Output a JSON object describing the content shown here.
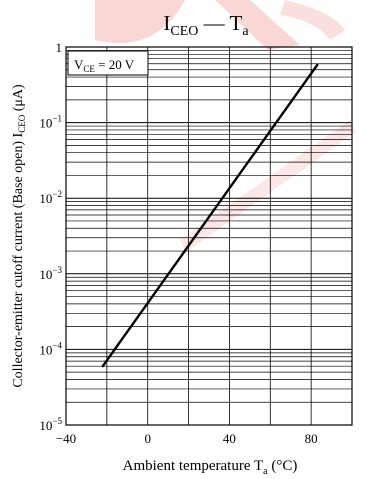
{
  "chart_data": {
    "type": "line",
    "title": "I CEO — T a",
    "title_parts": {
      "main": "I",
      "main_sub": "CEO",
      "sep": " — ",
      "var": "T",
      "var_sub": "a"
    },
    "xlabel_parts": {
      "text": "Ambient temperature ",
      "var": "T",
      "sub": "a",
      "unit": " (°C)"
    },
    "ylabel_parts": {
      "text": "Collector-emitter cutoff current (Base open) ",
      "var": "I",
      "sub": "CEO",
      "unit": " (μA)"
    },
    "annotation_parts": {
      "pre": "V",
      "sub": "CE",
      "post": " = 20 V"
    },
    "x_scale": "linear",
    "y_scale": "log",
    "xlim": [
      -40,
      100
    ],
    "ylim": [
      1e-05,
      1
    ],
    "x_ticks": [
      -40,
      0,
      40,
      80
    ],
    "x_tick_labels": [
      "−40",
      "0",
      "40",
      "80"
    ],
    "y_ticks": [
      1e-05,
      0.0001,
      0.001,
      0.01,
      0.1,
      1
    ],
    "y_tick_labels": [
      {
        "base": "10",
        "exp": "−5"
      },
      {
        "base": "10",
        "exp": "−4"
      },
      {
        "base": "10",
        "exp": "−3"
      },
      {
        "base": "10",
        "exp": "−2"
      },
      {
        "base": "10",
        "exp": "−1"
      },
      {
        "base": "1",
        "exp": ""
      }
    ],
    "grid": true,
    "x_grid_step": 20,
    "series": [
      {
        "x": [
          -22,
          83
        ],
        "y": [
          6e-05,
          0.58
        ],
        "color": "#000000"
      }
    ],
    "watermark_color": "#f5b7b7"
  }
}
